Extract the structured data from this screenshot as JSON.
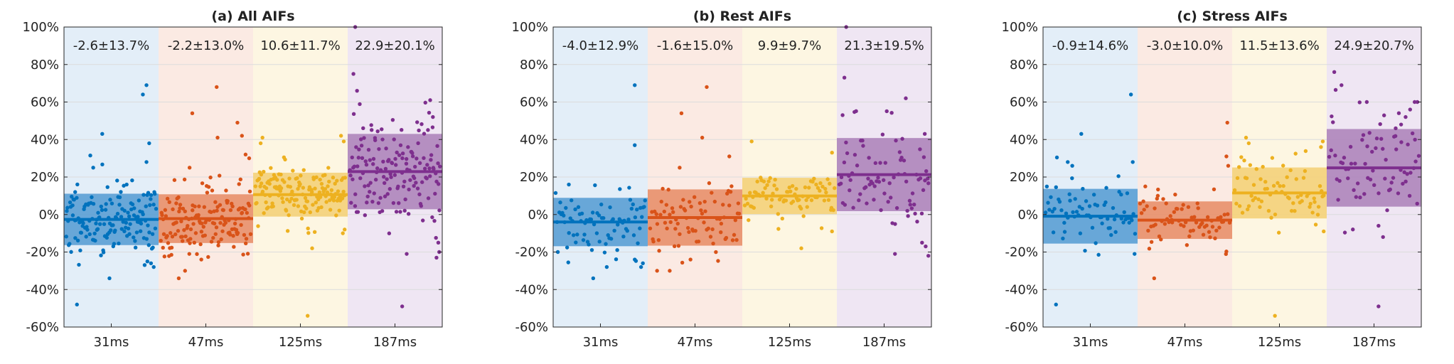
{
  "figure": {
    "background": "#ffffff"
  },
  "colors": {
    "groups": [
      "#0072BD",
      "#D95319",
      "#EDB120",
      "#7E2F8E"
    ],
    "backgrounds": [
      "#E3EEF8",
      "#FBEAE3",
      "#FDF6E2",
      "#EFE6F3"
    ],
    "bands": [
      "#5A9FD4",
      "#E8906A",
      "#F4D27A",
      "#AE85BB"
    ],
    "axis": "#262626",
    "grid": "#DCDCDC"
  },
  "chart_data": [
    {
      "type": "scatter",
      "title": "(a) All AIFs",
      "categories": [
        "31ms",
        "47ms",
        "125ms",
        "187ms"
      ],
      "ylim": [
        -60,
        100
      ],
      "yticks": [
        -60,
        -40,
        -20,
        0,
        20,
        40,
        60,
        80,
        100
      ],
      "ytick_labels": [
        "-60%",
        "-40%",
        "-20%",
        "0%",
        "20%",
        "40%",
        "60%",
        "80%",
        "100%"
      ],
      "grid": true,
      "groups": [
        {
          "label": "31ms",
          "summary": "-2.6±13.7%",
          "mean": -2.6,
          "std": 13.7,
          "n": 150,
          "seed": 11,
          "outliers": [
            [
              0.4,
              43
            ],
            [
              0.12,
              -48
            ],
            [
              0.48,
              -34
            ],
            [
              0.85,
              64
            ],
            [
              0.89,
              69
            ],
            [
              0.92,
              38
            ],
            [
              0.89,
              28
            ],
            [
              0.9,
              -25
            ],
            [
              0.94,
              -26
            ],
            [
              0.97,
              -28
            ],
            [
              0.1,
              12
            ],
            [
              0.3,
              25
            ]
          ]
        },
        {
          "label": "47ms",
          "summary": "-2.2±13.0%",
          "mean": -2.2,
          "std": 13.0,
          "n": 150,
          "seed": 23,
          "outliers": [
            [
              0.35,
              54
            ],
            [
              0.62,
              68
            ],
            [
              0.85,
              49
            ],
            [
              0.9,
              42
            ],
            [
              0.94,
              32
            ],
            [
              0.98,
              30
            ],
            [
              0.2,
              -34
            ],
            [
              0.27,
              -30
            ],
            [
              0.45,
              -24
            ],
            [
              0.63,
              41
            ],
            [
              0.32,
              25
            ]
          ]
        },
        {
          "label": "125ms",
          "summary": "10.6±11.7%",
          "mean": 10.6,
          "std": 11.7,
          "n": 150,
          "seed": 37,
          "outliers": [
            [
              0.58,
              -54
            ],
            [
              0.63,
              -18
            ],
            [
              0.95,
              42
            ],
            [
              0.98,
              39
            ],
            [
              0.97,
              -10
            ],
            [
              0.08,
              41
            ],
            [
              0.06,
              38
            ],
            [
              0.99,
              -8
            ]
          ]
        },
        {
          "label": "187ms",
          "summary": "22.9±20.1%",
          "mean": 22.9,
          "std": 20.1,
          "n": 150,
          "seed": 41,
          "outliers": [
            [
              0.06,
              100
            ],
            [
              0.58,
              -49
            ],
            [
              0.63,
              -21
            ],
            [
              0.89,
              61
            ],
            [
              0.96,
              -23
            ],
            [
              0.98,
              -15
            ],
            [
              0.99,
              -20
            ],
            [
              0.92,
              52
            ],
            [
              0.04,
              75
            ],
            [
              0.08,
              66
            ]
          ]
        }
      ]
    },
    {
      "type": "scatter",
      "title": "(b) Rest AIFs",
      "categories": [
        "31ms",
        "47ms",
        "125ms",
        "187ms"
      ],
      "ylim": [
        -60,
        100
      ],
      "yticks": [
        -60,
        -40,
        -20,
        0,
        20,
        40,
        60,
        80,
        100
      ],
      "ytick_labels": [
        "-60%",
        "-40%",
        "-20%",
        "0%",
        "20%",
        "40%",
        "60%",
        "80%",
        "100%"
      ],
      "grid": true,
      "groups": [
        {
          "label": "31ms",
          "summary": "-4.0±12.9%",
          "mean": -4.0,
          "std": 12.9,
          "n": 80,
          "seed": 53,
          "outliers": [
            [
              0.88,
              69
            ],
            [
              0.88,
              37
            ],
            [
              0.88,
              -24
            ],
            [
              0.95,
              -28
            ],
            [
              0.97,
              -26
            ],
            [
              0.42,
              -34
            ],
            [
              0.15,
              16
            ]
          ]
        },
        {
          "label": "47ms",
          "summary": "-1.6±15.0%",
          "mean": -1.6,
          "std": 15.0,
          "n": 80,
          "seed": 61,
          "outliers": [
            [
              0.35,
              54
            ],
            [
              0.63,
              68
            ],
            [
              0.58,
              41
            ],
            [
              0.88,
              31
            ],
            [
              0.08,
              -30
            ],
            [
              0.22,
              -30
            ],
            [
              0.45,
              -24
            ],
            [
              0.33,
              25
            ]
          ]
        },
        {
          "label": "125ms",
          "summary": "9.9±9.7%",
          "mean": 9.9,
          "std": 9.7,
          "n": 80,
          "seed": 71,
          "outliers": [
            [
              0.08,
              39
            ],
            [
              0.63,
              -18
            ],
            [
              0.97,
              33
            ],
            [
              0.97,
              -9
            ]
          ]
        },
        {
          "label": "187ms",
          "summary": "21.3±19.5%",
          "mean": 21.3,
          "std": 19.5,
          "n": 80,
          "seed": 83,
          "outliers": [
            [
              0.08,
              100
            ],
            [
              0.06,
              73
            ],
            [
              0.62,
              -21
            ],
            [
              0.74,
              62
            ],
            [
              0.92,
              -15
            ],
            [
              0.96,
              -17
            ],
            [
              0.99,
              -22
            ],
            [
              0.04,
              53
            ],
            [
              0.95,
              43
            ]
          ]
        }
      ]
    },
    {
      "type": "scatter",
      "title": "(c) Stress AIFs",
      "categories": [
        "31ms",
        "47ms",
        "125ms",
        "187ms"
      ],
      "ylim": [
        -60,
        100
      ],
      "yticks": [
        -60,
        -40,
        -20,
        0,
        20,
        40,
        60,
        80,
        100
      ],
      "ytick_labels": [
        "-60%",
        "-40%",
        "-20%",
        "0%",
        "20%",
        "40%",
        "60%",
        "80%",
        "100%"
      ],
      "grid": true,
      "groups": [
        {
          "label": "31ms",
          "summary": "-0.9±14.6%",
          "mean": -0.9,
          "std": 14.6,
          "n": 70,
          "seed": 97,
          "outliers": [
            [
              0.4,
              43
            ],
            [
              0.12,
              -48
            ],
            [
              0.95,
              64
            ],
            [
              0.97,
              28
            ],
            [
              0.99,
              -21
            ],
            [
              0.25,
              28
            ],
            [
              0.3,
              26
            ]
          ]
        },
        {
          "label": "47ms",
          "summary": "-3.0±10.0%",
          "mean": -3.0,
          "std": 10.0,
          "n": 70,
          "seed": 101,
          "outliers": [
            [
              0.16,
              -34
            ],
            [
              0.97,
              49
            ],
            [
              0.96,
              31
            ],
            [
              0.98,
              26
            ],
            [
              0.2,
              10
            ]
          ]
        },
        {
          "label": "125ms",
          "summary": "11.5±13.6%",
          "mean": 11.5,
          "std": 13.6,
          "n": 70,
          "seed": 107,
          "outliers": [
            [
              0.13,
              41
            ],
            [
              0.16,
              38
            ],
            [
              0.45,
              -54
            ],
            [
              0.98,
              39
            ],
            [
              0.96,
              36
            ],
            [
              0.99,
              -9
            ]
          ]
        },
        {
          "label": "187ms",
          "summary": "24.9±20.7%",
          "mean": 24.9,
          "std": 20.7,
          "n": 70,
          "seed": 113,
          "outliers": [
            [
              0.06,
              76
            ],
            [
              0.14,
              69
            ],
            [
              0.42,
              60
            ],
            [
              0.55,
              -49
            ],
            [
              0.6,
              -12
            ],
            [
              0.74,
              46
            ],
            [
              0.8,
              48
            ],
            [
              0.85,
              52
            ],
            [
              0.9,
              56
            ],
            [
              0.95,
              60
            ],
            [
              0.98,
              60
            ],
            [
              0.55,
              -6
            ]
          ]
        }
      ]
    }
  ]
}
